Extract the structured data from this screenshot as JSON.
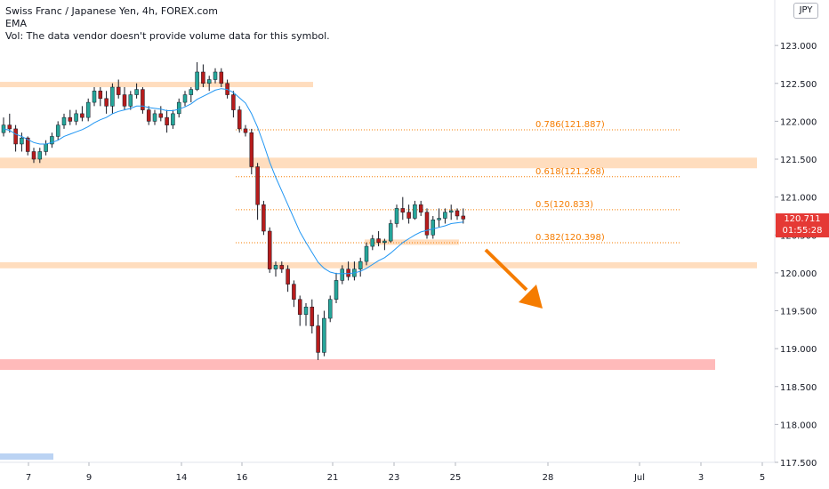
{
  "legend": {
    "title": "Swiss Franc / Japanese Yen, 4h, FOREX.com",
    "ema": "EMA",
    "vol": "Vol: The data vendor doesn't provide volume data for this symbol."
  },
  "currency_badge": "JPY",
  "last_price": {
    "value": "120.711",
    "countdown": "01:55:28"
  },
  "colors": {
    "up": "#26a69a",
    "down": "#b71c1c",
    "ema": "#2196f3",
    "zone": "#ffd7b3",
    "red_zone": "#ffb3b3",
    "fib": "#f57c00",
    "arrow": "#f57c00"
  },
  "chart_data": {
    "type": "candlestick",
    "symbol": "CHFJPY",
    "timeframe": "4h",
    "ylim": [
      117.5,
      123.6
    ],
    "y_ticks": [
      "123.000",
      "122.500",
      "122.000",
      "121.500",
      "121.000",
      "120.500",
      "120.000",
      "119.500",
      "119.000",
      "118.500",
      "118.000",
      "117.500"
    ],
    "x_ticks": [
      "7",
      "9",
      "14",
      "16",
      "21",
      "23",
      "25",
      "28",
      "Jul",
      "3",
      "5"
    ],
    "candles": [
      [
        121.85,
        122.05,
        121.8,
        121.95
      ],
      [
        121.95,
        122.1,
        121.85,
        121.9
      ],
      [
        121.9,
        121.95,
        121.6,
        121.7
      ],
      [
        121.7,
        121.85,
        121.6,
        121.78
      ],
      [
        121.78,
        121.8,
        121.55,
        121.6
      ],
      [
        121.6,
        121.65,
        121.45,
        121.5
      ],
      [
        121.5,
        121.65,
        121.45,
        121.6
      ],
      [
        121.6,
        121.75,
        121.55,
        121.7
      ],
      [
        121.7,
        121.85,
        121.65,
        121.8
      ],
      [
        121.8,
        122.0,
        121.75,
        121.95
      ],
      [
        121.95,
        122.1,
        121.9,
        122.05
      ],
      [
        122.05,
        122.15,
        121.95,
        122.0
      ],
      [
        122.0,
        122.15,
        121.95,
        122.1
      ],
      [
        122.1,
        122.2,
        122.0,
        122.05
      ],
      [
        122.05,
        122.3,
        122.0,
        122.25
      ],
      [
        122.25,
        122.45,
        122.2,
        122.4
      ],
      [
        122.4,
        122.45,
        122.2,
        122.3
      ],
      [
        122.3,
        122.4,
        122.1,
        122.2
      ],
      [
        122.2,
        122.5,
        122.1,
        122.45
      ],
      [
        122.45,
        122.55,
        122.3,
        122.35
      ],
      [
        122.35,
        122.45,
        122.15,
        122.2
      ],
      [
        122.2,
        122.4,
        122.15,
        122.35
      ],
      [
        122.35,
        122.5,
        122.3,
        122.42
      ],
      [
        122.42,
        122.45,
        122.1,
        122.15
      ],
      [
        122.15,
        122.2,
        121.95,
        122.0
      ],
      [
        122.0,
        122.15,
        121.95,
        122.1
      ],
      [
        122.1,
        122.2,
        122.0,
        122.05
      ],
      [
        122.05,
        122.15,
        121.85,
        121.95
      ],
      [
        121.95,
        122.15,
        121.9,
        122.1
      ],
      [
        122.1,
        122.3,
        122.05,
        122.25
      ],
      [
        122.25,
        122.4,
        122.2,
        122.35
      ],
      [
        122.35,
        122.45,
        122.25,
        122.42
      ],
      [
        122.42,
        122.78,
        122.4,
        122.65
      ],
      [
        122.65,
        122.75,
        122.45,
        122.5
      ],
      [
        122.5,
        122.6,
        122.4,
        122.55
      ],
      [
        122.55,
        122.7,
        122.5,
        122.65
      ],
      [
        122.65,
        122.7,
        122.45,
        122.5
      ],
      [
        122.5,
        122.55,
        122.3,
        122.35
      ],
      [
        122.35,
        122.4,
        122.05,
        122.15
      ],
      [
        122.15,
        122.2,
        121.85,
        121.9
      ],
      [
        121.9,
        121.95,
        121.8,
        121.85
      ],
      [
        121.85,
        121.9,
        121.3,
        121.4
      ],
      [
        121.4,
        121.45,
        120.7,
        120.9
      ],
      [
        120.9,
        120.95,
        120.5,
        120.55
      ],
      [
        120.55,
        120.6,
        120.0,
        120.05
      ],
      [
        120.05,
        120.15,
        119.95,
        120.1
      ],
      [
        120.1,
        120.15,
        120.0,
        120.05
      ],
      [
        120.05,
        120.1,
        119.75,
        119.85
      ],
      [
        119.85,
        119.9,
        119.55,
        119.65
      ],
      [
        119.65,
        119.7,
        119.3,
        119.45
      ],
      [
        119.45,
        119.6,
        119.3,
        119.55
      ],
      [
        119.55,
        119.65,
        119.2,
        119.3
      ],
      [
        119.3,
        119.45,
        118.85,
        118.95
      ],
      [
        118.95,
        119.5,
        118.9,
        119.4
      ],
      [
        119.4,
        119.7,
        119.35,
        119.65
      ],
      [
        119.65,
        120.0,
        119.6,
        119.9
      ],
      [
        119.9,
        120.1,
        119.85,
        120.05
      ],
      [
        120.05,
        120.15,
        119.9,
        119.95
      ],
      [
        119.95,
        120.15,
        119.9,
        120.05
      ],
      [
        120.05,
        120.2,
        119.95,
        120.15
      ],
      [
        120.15,
        120.4,
        120.1,
        120.35
      ],
      [
        120.35,
        120.5,
        120.3,
        120.45
      ],
      [
        120.45,
        120.55,
        120.35,
        120.4
      ],
      [
        120.4,
        120.45,
        120.3,
        120.42
      ],
      [
        120.42,
        120.7,
        120.4,
        120.65
      ],
      [
        120.65,
        120.9,
        120.6,
        120.85
      ],
      [
        120.85,
        121.0,
        120.7,
        120.8
      ],
      [
        120.8,
        120.9,
        120.65,
        120.72
      ],
      [
        120.72,
        120.95,
        120.7,
        120.9
      ],
      [
        120.9,
        120.95,
        120.75,
        120.8
      ],
      [
        120.8,
        120.85,
        120.45,
        120.5
      ],
      [
        120.5,
        120.75,
        120.45,
        120.7
      ],
      [
        120.7,
        120.85,
        120.6,
        120.72
      ],
      [
        120.72,
        120.85,
        120.65,
        120.8
      ],
      [
        120.8,
        120.9,
        120.7,
        120.82
      ],
      [
        120.82,
        120.85,
        120.7,
        120.75
      ],
      [
        120.75,
        120.85,
        120.65,
        120.71
      ]
    ],
    "ema_values": [
      121.9,
      121.88,
      121.83,
      121.8,
      121.76,
      121.72,
      121.7,
      121.7,
      121.72,
      121.75,
      121.8,
      121.83,
      121.86,
      121.89,
      121.93,
      121.98,
      122.02,
      122.05,
      122.1,
      122.13,
      122.15,
      122.17,
      122.2,
      122.2,
      122.18,
      122.17,
      122.16,
      122.14,
      122.14,
      122.16,
      122.19,
      122.23,
      122.29,
      122.33,
      122.37,
      122.41,
      122.43,
      122.42,
      122.38,
      122.31,
      122.24,
      122.1,
      121.92,
      121.7,
      121.46,
      121.26,
      121.08,
      120.9,
      120.72,
      120.54,
      120.4,
      120.27,
      120.14,
      120.06,
      120.01,
      119.99,
      119.99,
      119.99,
      120.0,
      120.02,
      120.06,
      120.11,
      120.16,
      120.2,
      120.26,
      120.33,
      120.4,
      120.45,
      120.5,
      120.54,
      120.56,
      120.58,
      120.6,
      120.62,
      120.65,
      120.66,
      120.67
    ],
    "fib_levels": [
      {
        "label": "0.786(121.887)",
        "value": 121.887
      },
      {
        "label": "0.618(121.268)",
        "value": 121.268
      },
      {
        "label": "0.5(120.833)",
        "value": 120.833
      },
      {
        "label": "0.382(120.398)",
        "value": 120.398
      }
    ],
    "zones": [
      {
        "low": 122.45,
        "high": 122.52,
        "color": "orange"
      },
      {
        "low": 121.38,
        "high": 121.52,
        "color": "orange"
      },
      {
        "low": 120.06,
        "high": 120.14,
        "color": "orange"
      },
      {
        "low": 120.38,
        "high": 120.44,
        "color": "orange"
      },
      {
        "low": 118.72,
        "high": 118.86,
        "color": "red"
      }
    ],
    "annotation": "arrow pointing down"
  }
}
